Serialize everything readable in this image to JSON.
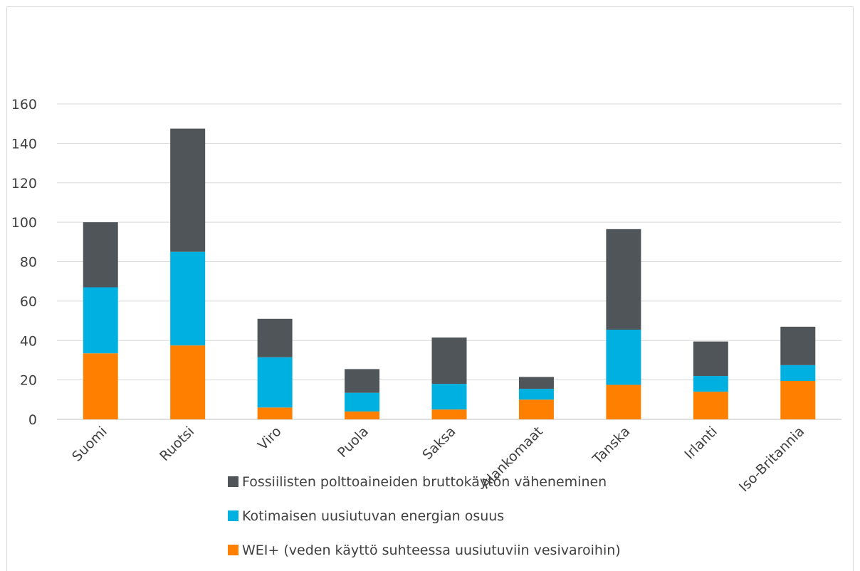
{
  "chart_data": {
    "type": "bar",
    "stacked": true,
    "categories": [
      "Suomi",
      "Ruotsi",
      "Viro",
      "Puola",
      "Saksa",
      "Alankomaat",
      "Tanska",
      "Irlanti",
      "Iso-Britannia"
    ],
    "series": [
      {
        "name": "WEI+ (veden käyttö suhteessa uusiutuviin vesivaroihin)",
        "color": "#ff8000",
        "values": [
          33.5,
          37.5,
          6,
          4,
          5,
          10,
          17.5,
          14,
          19.5
        ]
      },
      {
        "name": "Kotimaisen uusiutuvan energian osuus",
        "color": "#00b0e0",
        "values": [
          33.5,
          47.5,
          25.5,
          9.5,
          13,
          5.5,
          28,
          8,
          8
        ]
      },
      {
        "name": "Fossiilisten polttoaineiden bruttokäytön väheneminen",
        "color": "#505559",
        "values": [
          33,
          62.5,
          19.5,
          12,
          23.5,
          6,
          51,
          17.5,
          19.5
        ]
      }
    ],
    "ylim": [
      0,
      160
    ],
    "yticks": [
      0,
      20,
      40,
      60,
      80,
      100,
      120,
      140,
      160
    ],
    "grid": true,
    "legend_position": "bottom",
    "legend_order": [
      2,
      1,
      0
    ],
    "title": "",
    "xlabel": "",
    "ylabel": ""
  }
}
